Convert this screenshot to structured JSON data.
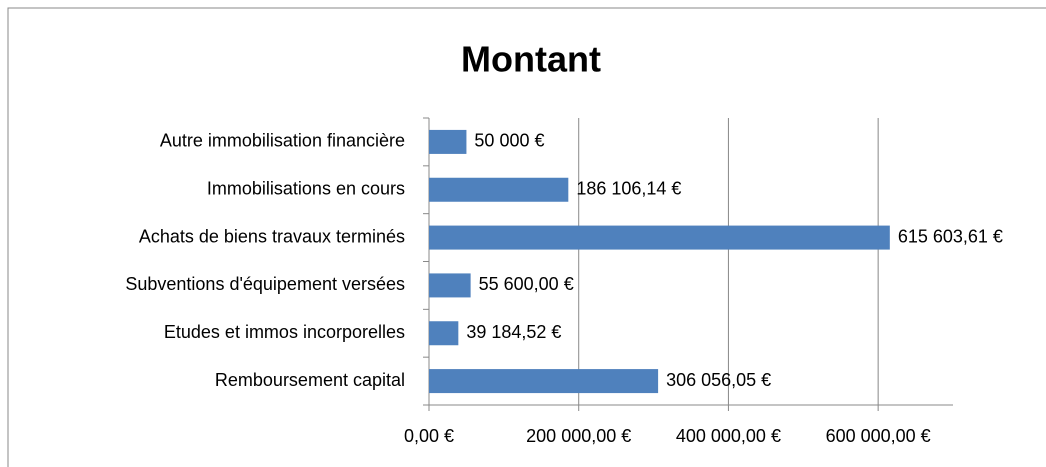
{
  "chart_data": {
    "type": "bar",
    "orientation": "horizontal",
    "title": "Montant",
    "categories": [
      "Autre immobilisation financière",
      "Immobilisations en cours",
      "Achats de biens travaux terminés",
      "Subventions d'équipement versées",
      "Etudes et immos incorporelles",
      "Remboursement capital"
    ],
    "values": [
      50000,
      186106.14,
      615603.61,
      55600,
      39184.52,
      306056.05
    ],
    "value_labels": [
      "50 000 €",
      "186 106,14 €",
      "615 603,61 €",
      "55 600,00 €",
      "39 184,52 €",
      "306 056,05 €"
    ],
    "color": "#4f81bd",
    "xlim": [
      0,
      700000
    ],
    "xticks": [
      {
        "value": 0,
        "label": "0,00 €"
      },
      {
        "value": 200000,
        "label": "200 000,00 €"
      },
      {
        "value": 400000,
        "label": "400 000,00 €"
      },
      {
        "value": 600000,
        "label": "600 000,00 €"
      }
    ],
    "grid": true
  }
}
